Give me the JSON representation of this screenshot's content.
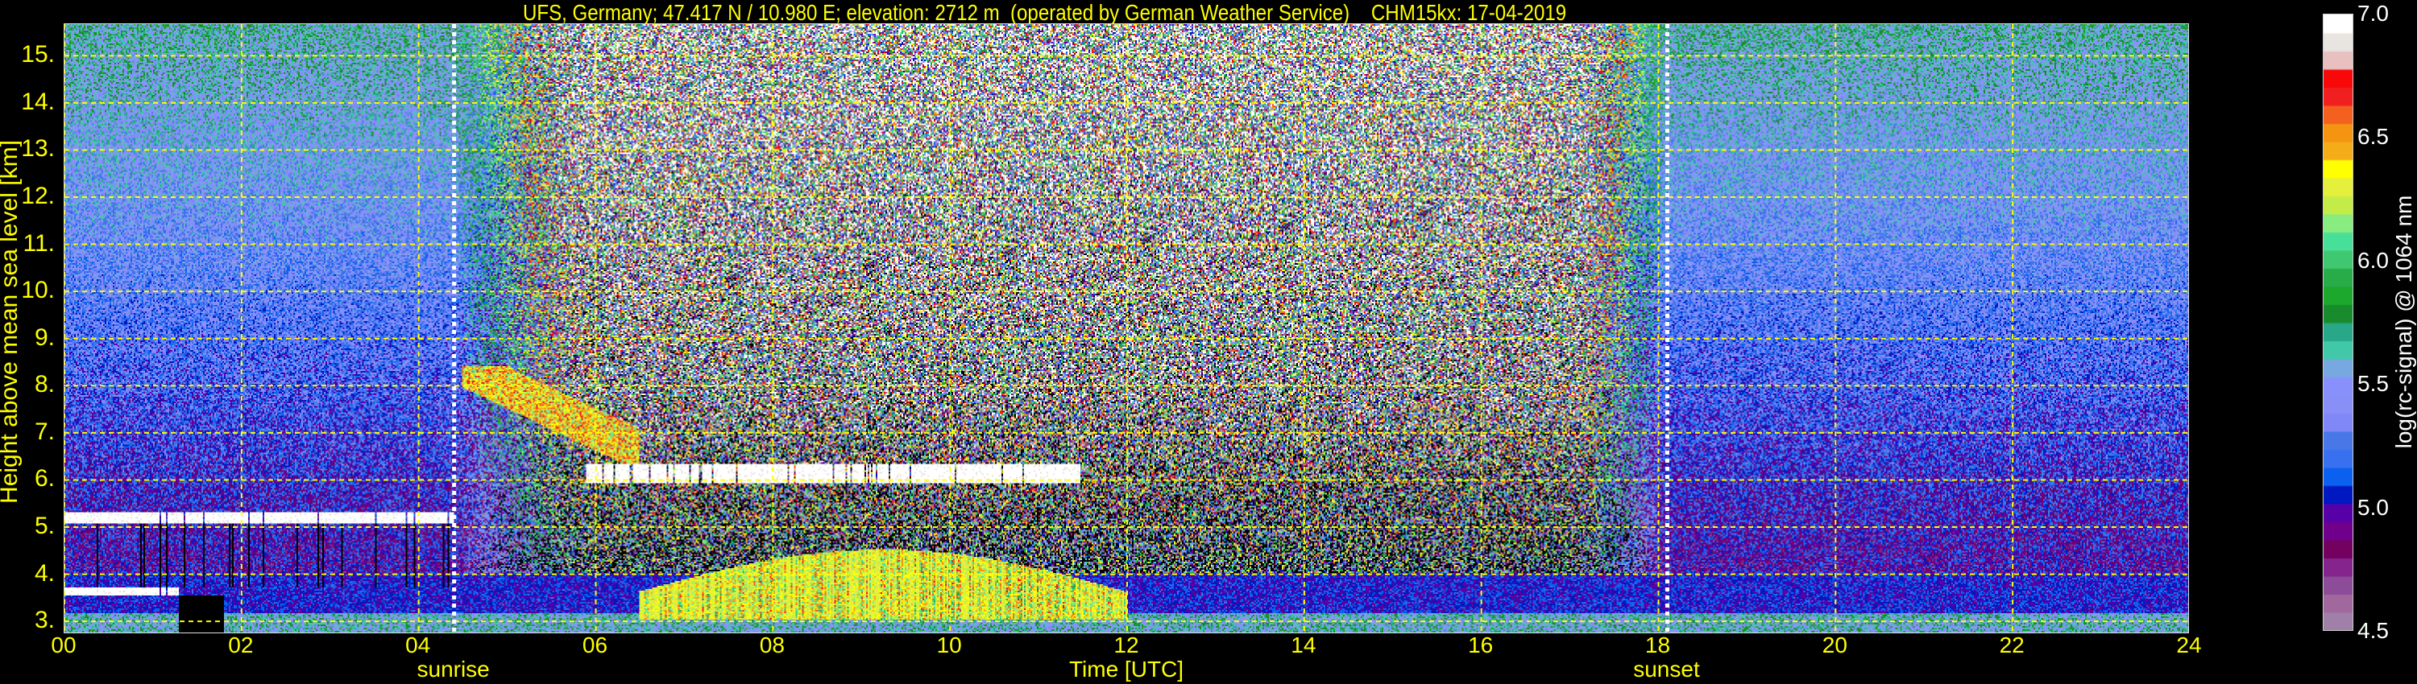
{
  "title": "UFS, Germany; 47.417 N / 10.980 E; elevation: 2712 m  (operated by German Weather Service)    CHM15kx: 17-04-2019",
  "chart_data": {
    "type": "heatmap",
    "title": "UFS, Germany; 47.417 N / 10.980 E; elevation: 2712 m  (operated by German Weather Service)    CHM15kx: 17-04-2019",
    "xlabel": "Time [UTC]",
    "ylabel": "Height above mean sea level [km]",
    "xlim": [
      0,
      24
    ],
    "ylim": [
      2.73,
      15.67
    ],
    "xticks": [
      "00",
      "02",
      "04",
      "06",
      "08",
      "10",
      "12",
      "14",
      "16",
      "18",
      "20",
      "22",
      "24"
    ],
    "yticks": [
      "3.",
      "4.",
      "5.",
      "6.",
      "7.",
      "8.",
      "9.",
      "10.",
      "11.",
      "12.",
      "13.",
      "14.",
      "15."
    ],
    "grid": true,
    "events": [
      {
        "label": "sunrise",
        "time": 4.4
      },
      {
        "label": "sunset",
        "time": 18.1
      }
    ],
    "colorbar": {
      "label": "log(rc-signal) @ 1064 nm",
      "range": [
        4.5,
        7.0
      ],
      "ticks": [
        "4.5",
        "5.0",
        "5.5",
        "6.0",
        "6.5",
        "7.0"
      ],
      "colors": [
        "#a080a8",
        "#a0689c",
        "#8c4c98",
        "#84248c",
        "#740060",
        "#70008c",
        "#5800a8",
        "#0018c0",
        "#0c60f0",
        "#3870f0",
        "#4878e8",
        "#8088f8",
        "#8890f8",
        "#8890fc",
        "#78a8e0",
        "#40c8a8",
        "#28a888",
        "#188c2c",
        "#1ca82c",
        "#28ac48",
        "#40c870",
        "#48e098",
        "#88ec80",
        "#c4ec48",
        "#e4f03c",
        "#ffff00",
        "#f4ac18",
        "#f49410",
        "#f46020",
        "#f02020",
        "#f80808",
        "#e8c0c0",
        "#e8e4e0",
        "#ffffff"
      ]
    },
    "features": [
      {
        "kind": "cloud",
        "t": [
          0.0,
          4.4
        ],
        "h": [
          5.05,
          5.3
        ],
        "value": 7.0
      },
      {
        "kind": "cloud",
        "t": [
          0.0,
          1.3
        ],
        "h": [
          3.5,
          3.7
        ],
        "value": 7.0
      },
      {
        "kind": "cloud",
        "t": [
          5.9,
          11.5
        ],
        "h": [
          5.9,
          6.3
        ],
        "value": 7.0
      },
      {
        "kind": "cirrus",
        "t": [
          4.5,
          6.5
        ],
        "h": [
          6.3,
          8.4
        ],
        "value": 6.4
      },
      {
        "kind": "boundary-layer",
        "t": [
          6.5,
          12.0
        ],
        "h": [
          3.0,
          4.6
        ],
        "value": 6.3
      },
      {
        "kind": "boundary-layer",
        "t": [
          0.0,
          24.0
        ],
        "h": [
          2.8,
          3.95
        ],
        "value": 5.1
      }
    ]
  }
}
